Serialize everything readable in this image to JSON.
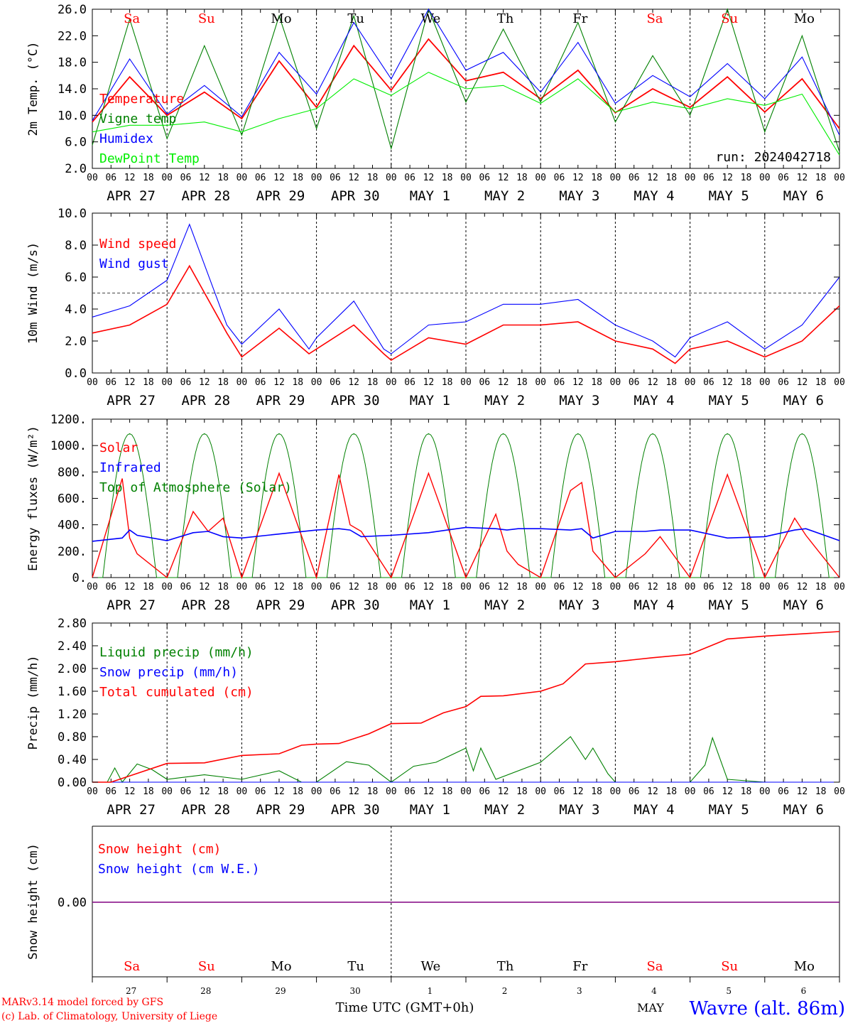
{
  "colors": {
    "red": "#ff0000",
    "green": "#008000",
    "blue": "#0000ff",
    "lime": "#00ee00",
    "purple": "#800080",
    "weekend": "#ff0000",
    "weekday": "#000000"
  },
  "day_names": [
    "Sa",
    "Su",
    "Mo",
    "Tu",
    "We",
    "Th",
    "Fr",
    "Sa",
    "Su",
    "Mo"
  ],
  "weekend_flags": [
    true,
    true,
    false,
    false,
    false,
    false,
    false,
    true,
    true,
    false
  ],
  "hour_ticks": [
    "00",
    "06",
    "12",
    "18"
  ],
  "end_hour": "00",
  "date_labels": [
    "APR 27",
    "APR 28",
    "APR 29",
    "APR 30",
    "MAY 1",
    "MAY 2",
    "MAY 3",
    "MAY 4",
    "MAY 5",
    "MAY 6"
  ],
  "bottom_day_numbers": [
    "27",
    "28",
    "29",
    "30",
    "1",
    "2",
    "3",
    "4",
    "5",
    "6"
  ],
  "bottom_month": "MAY",
  "footer": {
    "model_line": "MARv3.14 model forced by GFS",
    "credit_line": "(c) Lab. of Climatology, University of Liege",
    "axis_title": "Time UTC (GMT+0h)",
    "station": "Wavre (alt. 86m)"
  },
  "chart_data": [
    {
      "type": "line",
      "id": "temp",
      "ylabel": "2m Temp. (°C)",
      "ylim": [
        2.0,
        26.0
      ],
      "yticks": [
        "2.0",
        "6.0",
        "10.0",
        "14.0",
        "18.0",
        "22.0",
        "26.0"
      ],
      "annotation": "run: 2024042718",
      "x_days": [
        0,
        0.5,
        1,
        1.5,
        2,
        2.5,
        3,
        3.5,
        4,
        4.5,
        5,
        5.5,
        6,
        6.5,
        7,
        7.5,
        8,
        8.5,
        9,
        9.5,
        10
      ],
      "series": [
        {
          "name": "Temperature",
          "color": "#ff0000",
          "values": [
            9,
            15.8,
            10,
            13.5,
            9.5,
            18.2,
            11.2,
            20.5,
            13.8,
            21.5,
            15.2,
            16.5,
            12.5,
            16.8,
            10.4,
            14,
            11.2,
            15.8,
            10.5,
            15.5,
            8
          ]
        },
        {
          "name": "Vigne temp",
          "color": "#008000",
          "values": [
            5.5,
            24.5,
            6.5,
            20.5,
            7,
            25,
            8,
            25,
            5,
            27,
            12,
            23,
            12,
            24,
            9,
            19,
            10,
            27,
            7.5,
            22,
            4.5
          ]
        },
        {
          "name": "Humidex",
          "color": "#0000ff",
          "values": [
            9.2,
            18.5,
            10.2,
            14.5,
            9.8,
            19.5,
            13.2,
            24,
            15.5,
            26,
            16.8,
            19.5,
            13.5,
            21,
            11.8,
            16,
            12.8,
            17.8,
            12.5,
            18.8,
            7
          ]
        },
        {
          "name": "DewPoint Temp",
          "color": "#00ee00",
          "values": [
            7.5,
            8.5,
            8.5,
            9,
            7.5,
            9.5,
            11,
            15.5,
            13,
            16.5,
            14,
            14.5,
            11.8,
            15.5,
            10.5,
            12,
            11,
            12.5,
            11.5,
            13.2,
            4
          ]
        }
      ]
    },
    {
      "type": "line",
      "id": "wind",
      "ylabel": "10m Wind (m/s)",
      "ylim": [
        0.0,
        10.0
      ],
      "yticks": [
        "0.0",
        "2.0",
        "4.0",
        "6.0",
        "8.0",
        "10.0"
      ],
      "reference_line": 5.0,
      "x_days": [
        0,
        0.5,
        1,
        1.3,
        1.8,
        2,
        2.5,
        2.9,
        3,
        3.5,
        3.9,
        4,
        4.5,
        5,
        5.5,
        6,
        6.5,
        7,
        7.5,
        7.8,
        8,
        8.5,
        9,
        9.5,
        10
      ],
      "series": [
        {
          "name": "Wind speed",
          "color": "#ff0000",
          "values": [
            2.5,
            3,
            4.3,
            6.7,
            2.5,
            1,
            2.8,
            1.2,
            1.5,
            3,
            1.2,
            0.8,
            2.2,
            1.8,
            3,
            3,
            3.2,
            2,
            1.5,
            0.6,
            1.5,
            2,
            1,
            2,
            4.2
          ]
        },
        {
          "name": "Wind gust",
          "color": "#0000ff",
          "values": [
            3.5,
            4.2,
            5.8,
            9.3,
            3,
            1.8,
            4,
            1.5,
            2.2,
            4.5,
            1.5,
            1.2,
            3,
            3.2,
            4.3,
            4.3,
            4.6,
            3,
            2,
            1,
            2.2,
            3.2,
            1.5,
            3,
            6
          ]
        }
      ]
    },
    {
      "type": "line",
      "id": "energy",
      "ylabel": "Energy fluxes (W/m²)",
      "ylim": [
        0,
        1200
      ],
      "yticks": [
        "0.",
        "200.",
        "400.",
        "600.",
        "800.",
        "1000.",
        "1200."
      ],
      "x_days": [
        0,
        0.4,
        0.5,
        0.6,
        1,
        1.35,
        1.55,
        1.75,
        2,
        2.5,
        3,
        3.3,
        3.45,
        3.6,
        4,
        4.5,
        5,
        5.4,
        5.55,
        5.7,
        6,
        6.4,
        6.55,
        6.7,
        7,
        7.4,
        7.6,
        8,
        8.5,
        9,
        9.4,
        9.55,
        10
      ],
      "series": [
        {
          "name": "Solar",
          "color": "#ff0000",
          "values": [
            0,
            750,
            300,
            180,
            0,
            500,
            350,
            450,
            0,
            790,
            0,
            780,
            400,
            350,
            0,
            790,
            0,
            480,
            200,
            100,
            0,
            660,
            720,
            200,
            0,
            180,
            310,
            0,
            780,
            0,
            450,
            320,
            0
          ]
        },
        {
          "name": "Infrared",
          "color": "#0000ff",
          "values": [
            275,
            300,
            360,
            320,
            280,
            340,
            350,
            310,
            300,
            330,
            360,
            370,
            360,
            310,
            320,
            340,
            380,
            370,
            360,
            370,
            370,
            360,
            370,
            300,
            350,
            350,
            360,
            360,
            300,
            310,
            360,
            370,
            280
          ]
        },
        {
          "name": "Top of Atmosphere (Solar)",
          "color": "#008000",
          "peak": 1090,
          "peak_days": [
            0.5,
            1.5,
            2.5,
            3.5,
            4.5,
            5.5,
            6.5,
            7.5,
            8.5,
            9.5
          ]
        }
      ]
    },
    {
      "type": "line",
      "id": "precip",
      "ylabel": "Precip (mm/h)",
      "ylim": [
        0.0,
        2.8
      ],
      "yticks": [
        "0.00",
        "0.40",
        "0.80",
        "1.20",
        "1.60",
        "2.00",
        "2.40",
        "2.80"
      ],
      "series": [
        {
          "name": "Liquid precip (mm/h)",
          "color": "#008000",
          "x_days": [
            0,
            0.2,
            0.3,
            0.4,
            0.6,
            0.8,
            1,
            1.5,
            2,
            2.5,
            2.8,
            3,
            3.4,
            3.7,
            4,
            4.3,
            4.6,
            5,
            5.1,
            5.2,
            5.4,
            6,
            6.4,
            6.6,
            6.7,
            6.9,
            7,
            8,
            8.2,
            8.3,
            8.5,
            9,
            10
          ],
          "values": [
            0,
            0,
            0.25,
            0,
            0.32,
            0.22,
            0.05,
            0.13,
            0.05,
            0.2,
            0,
            0,
            0.36,
            0.3,
            0,
            0.28,
            0.35,
            0.6,
            0.2,
            0.6,
            0.05,
            0.35,
            0.8,
            0.4,
            0.6,
            0.15,
            0,
            0,
            0.3,
            0.78,
            0.05,
            0,
            0
          ]
        },
        {
          "name": "Snow precip (mm/h)",
          "color": "#0000ff",
          "x_days": [
            0,
            10
          ],
          "values": [
            0,
            0
          ]
        },
        {
          "name": "Total cumulated (cm)",
          "color": "#ff0000",
          "x_days": [
            0,
            0.25,
            1,
            1.5,
            2,
            2.5,
            2.8,
            3,
            3.3,
            3.7,
            4,
            4.4,
            4.7,
            5,
            5.2,
            5.5,
            6,
            6.3,
            6.6,
            7,
            7.5,
            8,
            8.5,
            9,
            10
          ],
          "values": [
            0,
            0,
            0.33,
            0.34,
            0.47,
            0.5,
            0.65,
            0.67,
            0.68,
            0.85,
            1.03,
            1.04,
            1.22,
            1.33,
            1.51,
            1.52,
            1.6,
            1.73,
            2.08,
            2.12,
            2.19,
            2.25,
            2.52,
            2.57,
            2.65
          ]
        }
      ]
    },
    {
      "type": "line",
      "id": "snow",
      "ylabel": "Snow height (cm)",
      "yticks": [
        "0.00"
      ],
      "series": [
        {
          "name": "Snow height (cm)",
          "color": "#ff0000",
          "x_days": [
            0,
            10
          ],
          "values": [
            0,
            0
          ]
        },
        {
          "name": "Snow height (cm W.E.)",
          "color": "#0000ff",
          "x_days": [
            0,
            10
          ],
          "values": [
            0,
            0
          ]
        }
      ]
    }
  ]
}
